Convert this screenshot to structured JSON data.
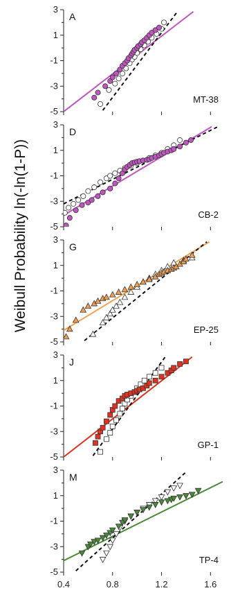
{
  "figure": {
    "ylabel": "Weibull Probability  ln(-ln(1-P))",
    "xticks": [
      "0.4",
      "0.8",
      "1.2",
      "1.6"
    ],
    "yticks": [
      "3",
      "1",
      "-1",
      "-3",
      "-5"
    ]
  },
  "chart_data": [
    {
      "type": "scatter",
      "panel": "A",
      "sample": "MT-38",
      "color": "#bf55bf",
      "marker": "circle",
      "xlim": [
        0.4,
        1.7
      ],
      "ylim": [
        -5,
        3
      ],
      "xscale": "linear",
      "grid": false,
      "series": [
        {
          "role": "filled",
          "x": [
            0.65,
            0.68,
            0.74,
            0.78,
            0.8,
            0.83,
            0.86,
            0.88,
            0.9,
            0.92,
            0.93,
            0.95,
            0.96,
            0.97,
            0.98,
            1.0,
            1.01,
            1.03,
            1.04,
            1.06,
            1.08,
            1.1,
            1.12,
            1.15,
            1.18
          ],
          "y": [
            -3.9,
            -3.5,
            -3.0,
            -2.6,
            -2.3,
            -2.0,
            -1.7,
            -1.4,
            -1.2,
            -1.0,
            -0.8,
            -0.6,
            -0.45,
            -0.3,
            -0.15,
            0.0,
            0.15,
            0.3,
            0.45,
            0.6,
            0.8,
            1.0,
            1.2,
            1.4,
            1.6
          ]
        },
        {
          "role": "open",
          "x": [
            0.7,
            0.77,
            0.82,
            0.85,
            0.88,
            0.91,
            0.94,
            0.96,
            0.98,
            1.0,
            1.03,
            1.06,
            1.09,
            1.12,
            1.16,
            1.2,
            1.22
          ],
          "y": [
            -4.4,
            -3.3,
            -2.8,
            -2.4,
            -2.0,
            -1.6,
            -1.2,
            -0.9,
            -0.7,
            -0.4,
            -0.1,
            0.2,
            0.5,
            0.8,
            1.1,
            1.5,
            2.0
          ]
        }
      ],
      "fit_line": [
        [
          0.4,
          -5.0
        ],
        [
          1.46,
          2.85
        ]
      ],
      "dashed_line": [
        [
          0.72,
          -4.9
        ],
        [
          1.33,
          2.85
        ]
      ]
    },
    {
      "type": "scatter",
      "panel": "D",
      "sample": "CB-2",
      "color": "#bf55bf",
      "marker": "circle",
      "xlim": [
        0.4,
        1.7
      ],
      "ylim": [
        -5,
        3
      ],
      "xscale": "linear",
      "grid": false,
      "series": [
        {
          "role": "filled",
          "x": [
            0.42,
            0.45,
            0.5,
            0.55,
            0.6,
            0.63,
            0.68,
            0.72,
            0.78,
            0.82,
            0.85,
            0.88,
            0.9,
            0.92,
            0.94,
            0.96,
            0.98,
            1.0,
            1.02,
            1.05,
            1.08,
            1.1,
            1.12,
            1.15,
            1.18,
            1.2,
            1.22,
            1.25,
            1.28,
            1.3,
            1.35,
            1.4,
            1.44
          ],
          "y": [
            -4.9,
            -4.3,
            -3.7,
            -3.3,
            -3.1,
            -2.9,
            -2.6,
            -2.3,
            -2.0,
            -1.6,
            -1.2,
            -0.8,
            -0.5,
            -0.3,
            -0.15,
            0.0,
            0.05,
            0.1,
            0.15,
            0.2,
            0.25,
            0.3,
            0.4,
            0.5,
            0.6,
            0.7,
            0.8,
            0.9,
            1.0,
            1.1,
            1.3,
            1.6,
            1.8
          ]
        },
        {
          "role": "open",
          "x": [
            0.41,
            0.44,
            0.48,
            0.52,
            0.56,
            0.6,
            0.65,
            0.7,
            0.75,
            0.78,
            0.82,
            0.86,
            0.9,
            0.95,
            1.0,
            1.05,
            1.1,
            1.15,
            1.2,
            1.25,
            1.3,
            1.35
          ],
          "y": [
            -3.9,
            -3.5,
            -3.2,
            -2.9,
            -2.6,
            -2.2,
            -1.9,
            -1.5,
            -1.2,
            -1.0,
            -0.8,
            -0.6,
            -0.4,
            -0.2,
            0.0,
            0.2,
            0.4,
            0.6,
            0.8,
            1.1,
            1.4,
            1.8
          ]
        }
      ],
      "fit_line": [
        [
          0.4,
          -4.1
        ],
        [
          1.61,
          2.85
        ]
      ],
      "dashed_line": [
        [
          0.4,
          -3.2
        ],
        [
          1.66,
          2.85
        ]
      ]
    },
    {
      "type": "scatter",
      "panel": "G",
      "sample": "EP-25",
      "color": "#f0a050",
      "marker": "triangle",
      "xlim": [
        0.4,
        1.7
      ],
      "ylim": [
        -5,
        3
      ],
      "xscale": "linear",
      "grid": false,
      "series": [
        {
          "role": "filled",
          "x": [
            0.42,
            0.45,
            0.5,
            0.56,
            0.6,
            0.65,
            0.68,
            0.72,
            0.75,
            0.8,
            0.85,
            0.9,
            0.95,
            1.0,
            1.05,
            1.1,
            1.15,
            1.18,
            1.2,
            1.22,
            1.25,
            1.28,
            1.3,
            1.32,
            1.35,
            1.38,
            1.4,
            1.45
          ],
          "y": [
            -4.6,
            -4.0,
            -3.3,
            -2.5,
            -2.2,
            -2.0,
            -1.8,
            -1.6,
            -1.5,
            -1.3,
            -1.1,
            -0.9,
            -0.7,
            -0.5,
            -0.3,
            -0.1,
            0.1,
            0.3,
            0.4,
            0.5,
            0.6,
            0.7,
            0.8,
            0.9,
            1.1,
            1.3,
            1.5,
            1.8
          ]
        },
        {
          "role": "open",
          "x": [
            0.64,
            0.72,
            0.75,
            0.78,
            0.8,
            0.83,
            0.86,
            0.9,
            0.95,
            1.0,
            1.05,
            1.1,
            1.15,
            1.2,
            1.25,
            1.3,
            1.38,
            1.45
          ],
          "y": [
            -4.4,
            -3.5,
            -3.1,
            -2.8,
            -2.5,
            -2.2,
            -1.9,
            -1.5,
            -1.1,
            -0.7,
            -0.3,
            0.0,
            0.3,
            0.6,
            0.9,
            1.2,
            1.4,
            1.6
          ]
        }
      ],
      "fit_line": [
        [
          0.4,
          -4.1
        ],
        [
          1.59,
          2.85
        ]
      ],
      "dashed_line": [
        [
          0.57,
          -4.9
        ],
        [
          1.57,
          2.85
        ]
      ]
    },
    {
      "type": "scatter",
      "panel": "J",
      "sample": "GP-1",
      "color": "#dd3322",
      "marker": "square",
      "xlim": [
        0.4,
        1.7
      ],
      "ylim": [
        -5,
        3
      ],
      "xscale": "linear",
      "grid": false,
      "series": [
        {
          "role": "filled",
          "x": [
            0.66,
            0.68,
            0.7,
            0.72,
            0.75,
            0.78,
            0.8,
            0.82,
            0.85,
            0.88,
            0.9,
            0.92,
            0.95,
            0.98,
            1.0,
            1.02,
            1.05,
            1.08,
            1.1,
            1.15,
            1.2,
            1.25,
            1.28,
            1.3,
            1.35,
            1.4
          ],
          "y": [
            -3.9,
            -3.4,
            -3.0,
            -2.7,
            -2.2,
            -1.7,
            -1.3,
            -1.0,
            -0.6,
            -0.4,
            -0.2,
            -0.1,
            0.0,
            0.1,
            0.2,
            0.3,
            0.4,
            0.6,
            0.8,
            1.0,
            1.3,
            1.6,
            1.8,
            2.0,
            2.3,
            2.5
          ]
        },
        {
          "role": "open",
          "x": [
            0.7,
            0.75,
            0.78,
            0.8,
            0.83,
            0.86,
            0.88,
            0.9,
            0.92,
            0.95,
            0.98,
            1.0,
            1.03,
            1.06,
            1.1,
            1.15,
            1.2
          ],
          "y": [
            -4.6,
            -3.6,
            -3.1,
            -2.6,
            -2.1,
            -1.6,
            -1.2,
            -0.8,
            -0.5,
            -0.2,
            0.1,
            0.4,
            0.7,
            1.0,
            1.3,
            1.6,
            2.0
          ]
        }
      ],
      "fit_line": [
        [
          0.4,
          -5.0
        ],
        [
          1.45,
          2.85
        ]
      ],
      "dashed_line": [
        [
          0.64,
          -4.9
        ],
        [
          1.23,
          2.85
        ]
      ]
    },
    {
      "type": "scatter",
      "panel": "M",
      "sample": "TP-4",
      "color": "#4a8a3a",
      "marker": "triangle-down",
      "xlim": [
        0.4,
        1.7
      ],
      "ylim": [
        -5,
        3
      ],
      "xscale": "linear",
      "grid": false,
      "series": [
        {
          "role": "filled",
          "x": [
            0.55,
            0.6,
            0.62,
            0.65,
            0.68,
            0.72,
            0.75,
            0.78,
            0.8,
            0.85,
            0.88,
            0.9,
            0.95,
            1.0,
            1.05,
            1.1,
            1.15,
            1.2,
            1.25,
            1.28,
            1.3,
            1.35,
            1.4,
            1.45,
            1.5
          ],
          "y": [
            -3.5,
            -3.0,
            -2.8,
            -2.6,
            -2.5,
            -2.3,
            -2.1,
            -1.9,
            -1.7,
            -1.4,
            -1.1,
            -0.9,
            -0.6,
            -0.3,
            -0.1,
            0.1,
            0.3,
            0.5,
            0.6,
            0.7,
            0.8,
            0.9,
            1.0,
            1.1,
            1.4
          ]
        },
        {
          "role": "open",
          "x": [
            0.72,
            0.75,
            0.78,
            0.8,
            0.83,
            0.86,
            0.9,
            0.95,
            1.0,
            1.05,
            1.1,
            1.15,
            1.2,
            1.25,
            1.3,
            1.35
          ],
          "y": [
            -4.0,
            -3.5,
            -3.0,
            -2.5,
            -2.0,
            -1.5,
            -1.0,
            -0.6,
            -0.3,
            0.0,
            0.3,
            0.6,
            0.9,
            1.3,
            1.6,
            1.8
          ]
        }
      ],
      "fit_line": [
        [
          0.4,
          -4.1
        ],
        [
          1.7,
          2.1
        ]
      ],
      "dashed_line": [
        [
          0.5,
          -4.9
        ],
        [
          1.4,
          2.85
        ]
      ]
    }
  ]
}
